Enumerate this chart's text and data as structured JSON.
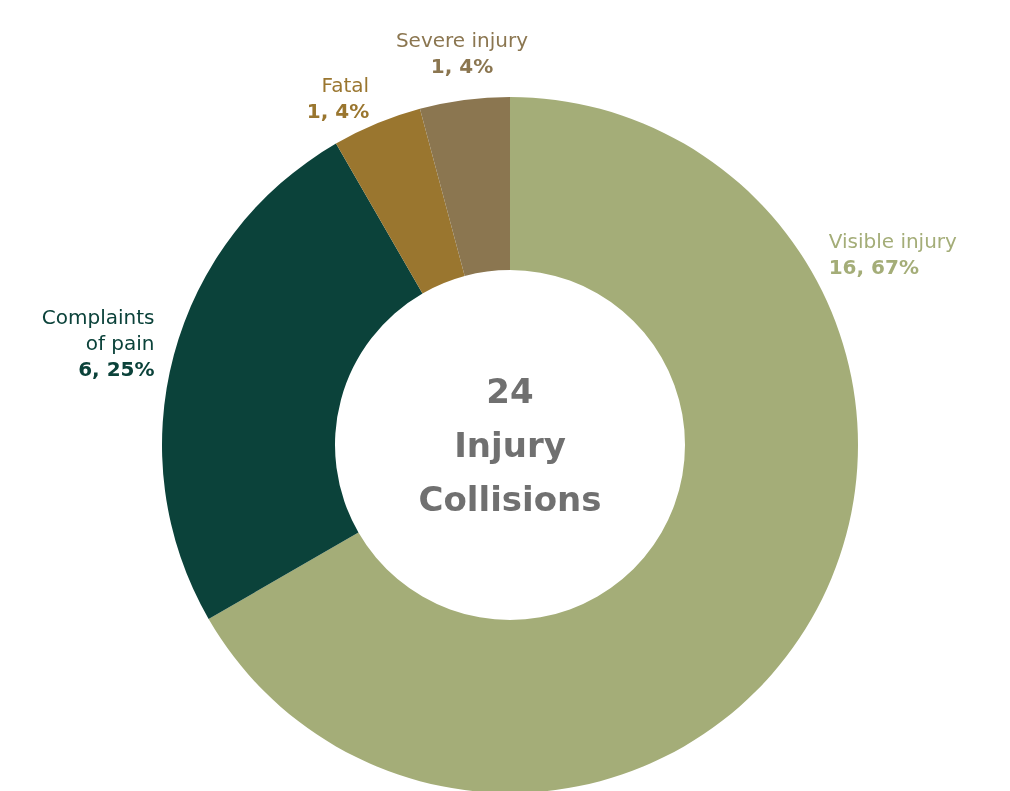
{
  "chart_data": {
    "type": "donut",
    "categories": [
      "Visible injury",
      "Complaints of pain",
      "Fatal",
      "Severe injury"
    ],
    "values": [
      16,
      6,
      1,
      1
    ],
    "colors": [
      "#a4ad78",
      "#0b423a",
      "#9a762f",
      "#8b7650"
    ],
    "value_labels": [
      "16, 67%",
      "6, 25%",
      "1, 4%",
      "1, 4%"
    ],
    "annotations": [
      "24 Injury Collisions"
    ]
  }
}
